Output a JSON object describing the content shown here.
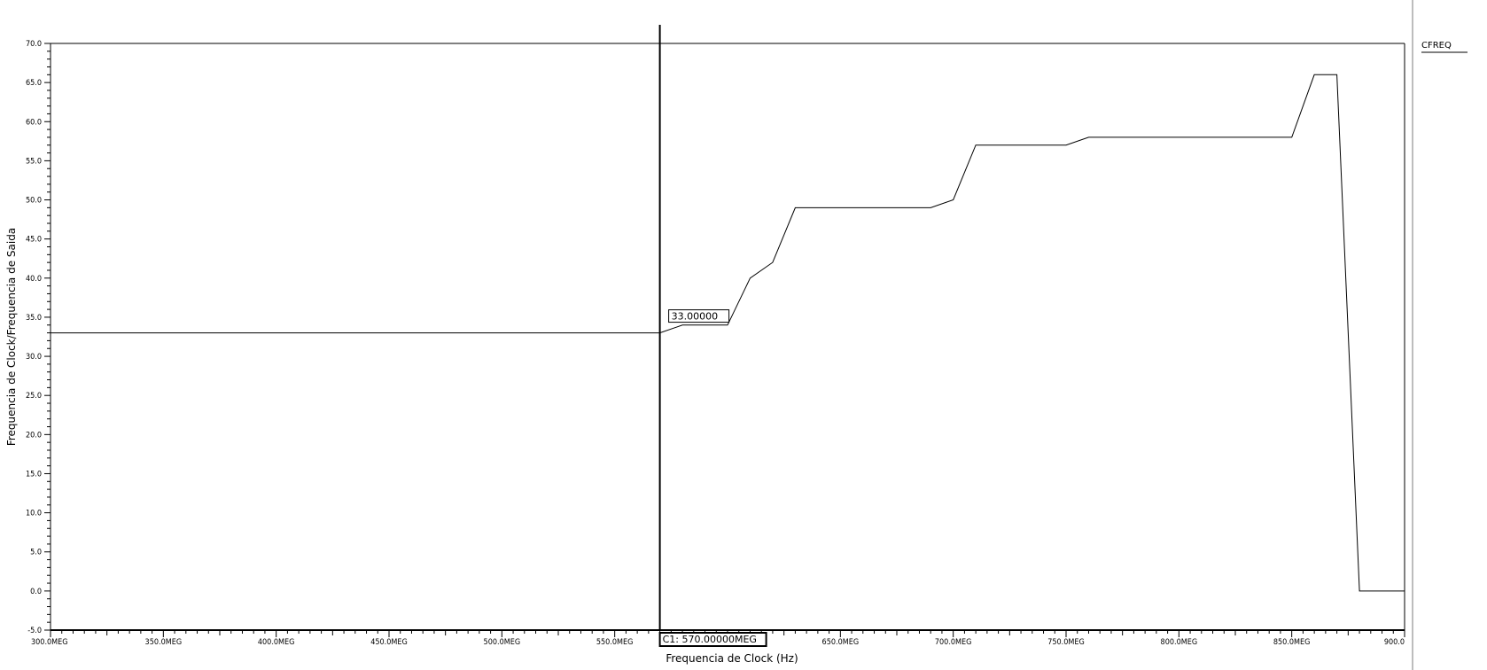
{
  "chart_data": {
    "type": "line",
    "title": "",
    "xlabel": "Frequencia de Clock (Hz)",
    "ylabel": "Frequencia de Clock/Frequencia de Saida",
    "xlim": [
      300,
      900
    ],
    "ylim": [
      -5,
      70
    ],
    "x_tick_values": [
      300,
      350,
      400,
      450,
      500,
      550,
      650,
      700,
      750,
      800,
      850,
      900
    ],
    "x_tick_labels": [
      "300.0MEG",
      "350.0MEG",
      "400.0MEG",
      "450.0MEG",
      "500.0MEG",
      "550.0MEG",
      "650.0MEG",
      "700.0MEG",
      "750.0MEG",
      "800.0MEG",
      "850.0MEG",
      "900.0"
    ],
    "y_tick_values": [
      -5,
      0,
      5,
      10,
      15,
      20,
      25,
      30,
      35,
      40,
      45,
      50,
      55,
      60,
      65,
      70
    ],
    "y_tick_labels": [
      "-5.0",
      "0.0",
      "5.0",
      "10.0",
      "15.0",
      "20.0",
      "25.0",
      "30.0",
      "35.0",
      "40.0",
      "45.0",
      "50.0",
      "55.0",
      "60.0",
      "65.0",
      "70.0"
    ],
    "grid": false,
    "legend_position": "top-right",
    "series": [
      {
        "name": "CFREQ",
        "color": "#000000",
        "x": [
          300,
          570,
          580,
          590,
          600,
          610,
          620,
          630,
          640,
          650,
          660,
          670,
          680,
          690,
          700,
          710,
          720,
          730,
          740,
          750,
          760,
          770,
          780,
          790,
          800,
          810,
          820,
          830,
          840,
          850,
          860,
          870,
          880,
          890,
          900
        ],
        "y": [
          33,
          33,
          34,
          34,
          34,
          40,
          42,
          49,
          49,
          49,
          49,
          49,
          49,
          49,
          50,
          57,
          57,
          57,
          57,
          57,
          58,
          58,
          58,
          58,
          58,
          58,
          58,
          58,
          58,
          58,
          66,
          66,
          0,
          0,
          0
        ]
      }
    ],
    "cursor": {
      "x": 570,
      "x_label": "C1: 570.00000MEG",
      "y_value_label": "33.00000"
    }
  }
}
